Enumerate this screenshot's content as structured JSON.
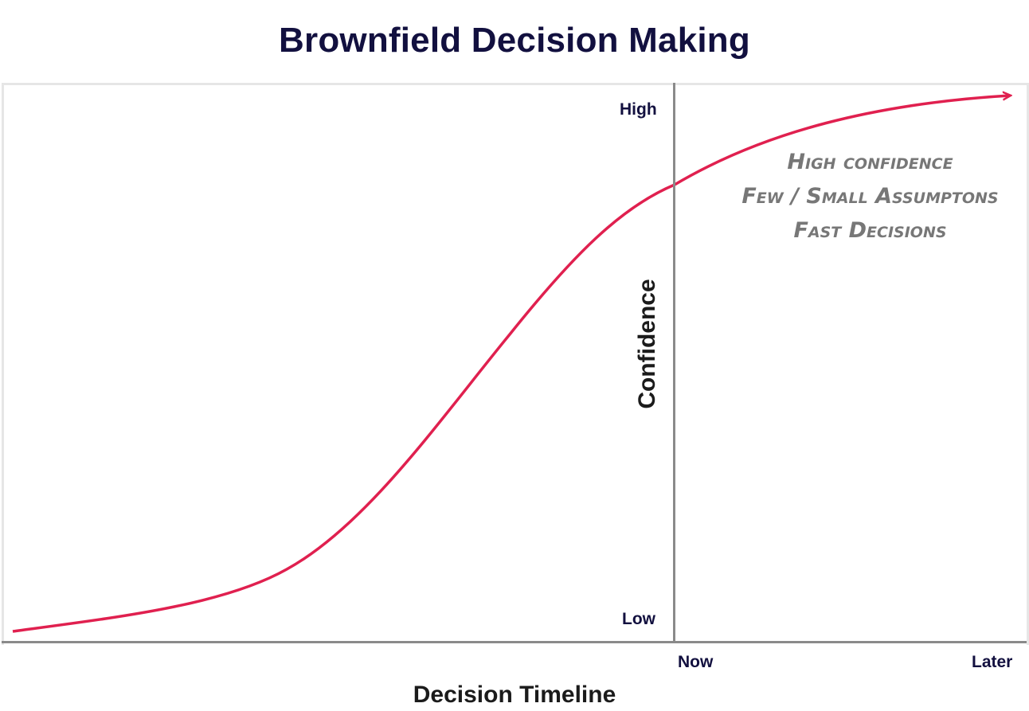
{
  "title": "Brownfield Decision Making",
  "y_axis": {
    "title": "Confidence",
    "high_label": "High",
    "low_label": "Low"
  },
  "x_axis": {
    "title": "Decision Timeline",
    "now_label": "Now",
    "later_label": "Later"
  },
  "annotation_lines": [
    "High confidence",
    "Few / Small Assumptons",
    "Fast Decisions"
  ],
  "curve": {
    "color": "#e0204f",
    "shape": "s-curve",
    "arrow_end": true
  },
  "colors": {
    "title": "#12103f",
    "axis": "#8a8a8a",
    "frame": "#e6e6e6",
    "annotation": "#777777"
  }
}
